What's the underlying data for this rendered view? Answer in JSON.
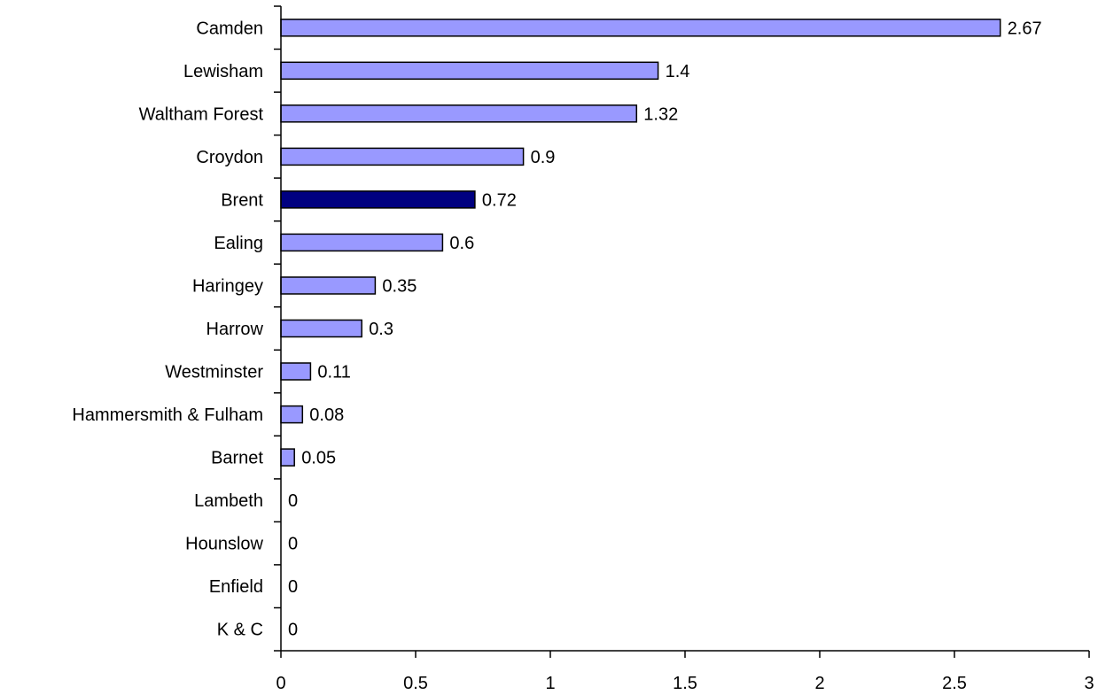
{
  "chart_data": {
    "type": "bar",
    "orientation": "horizontal",
    "title": "",
    "xlabel": "",
    "ylabel": "",
    "xlim": [
      0,
      3
    ],
    "x_ticks": [
      "0",
      "0.5",
      "1",
      "1.5",
      "2",
      "2.5",
      "3"
    ],
    "grid": false,
    "legend": "none",
    "categories": [
      "Camden",
      "Lewisham",
      "Waltham Forest",
      "Croydon",
      "Brent",
      "Ealing",
      "Haringey",
      "Harrow",
      "Westminster",
      "Hammersmith & Fulham",
      "Barnet",
      "Lambeth",
      "Hounslow",
      "Enfield",
      "K & C"
    ],
    "values": [
      2.67,
      1.4,
      1.32,
      0.9,
      0.72,
      0.6,
      0.35,
      0.3,
      0.11,
      0.08,
      0.05,
      0,
      0,
      0,
      0
    ],
    "value_labels": [
      "2.67",
      "1.4",
      "1.32",
      "0.9",
      "0.72",
      "0.6",
      "0.35",
      "0.3",
      "0.11",
      "0.08",
      "0.05",
      "0",
      "0",
      "0",
      "0"
    ],
    "highlight_category": "Brent",
    "colors": {
      "bar": "#9999ff",
      "highlight": "#000080",
      "bar_stroke": "#000000",
      "axis": "#000000"
    }
  }
}
